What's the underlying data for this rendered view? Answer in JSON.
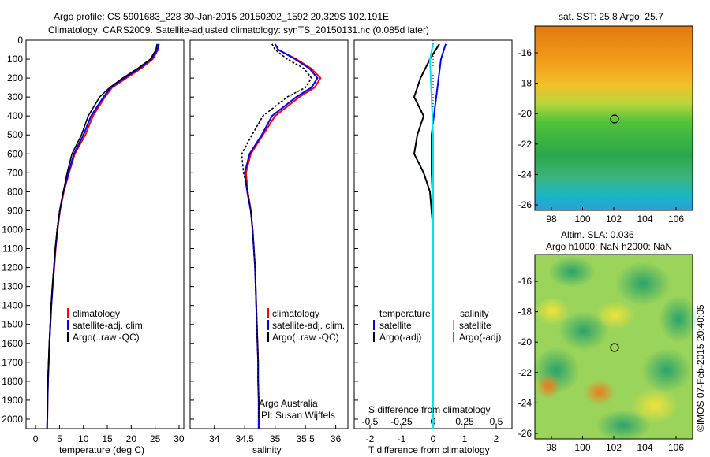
{
  "header": {
    "line1": "Argo profile: CS 5901683_228 30-Jan-2015 20150202_1592 20.329S 102.191E",
    "line2": "Climatology: CARS2009. Satellite-adjusted climatology: synTS_20150131.nc (0.085d later)"
  },
  "colors": {
    "climatology": "#ff0000",
    "satellite": "#0000ff",
    "argo": "#000000",
    "salinity_satellite": "#00e5ee",
    "salinity_argo": "#ff00ff"
  },
  "depth_axis": {
    "ylim": [
      0,
      2050
    ],
    "ticks": [
      0,
      100,
      200,
      300,
      400,
      500,
      600,
      700,
      800,
      900,
      1000,
      1100,
      1200,
      1300,
      1400,
      1500,
      1600,
      1700,
      1800,
      1900,
      2000
    ]
  },
  "chart_data": [
    {
      "type": "line",
      "xlabel": "temperature (deg C)",
      "xlim": [
        -2,
        31
      ],
      "xticks": [
        0,
        5,
        10,
        15,
        20,
        25,
        30
      ],
      "legend": [
        "climatology",
        "satellite-adj. clim.",
        "Argo(..raw -QC)"
      ],
      "series": [
        {
          "name": "climatology",
          "x": [
            25.8,
            25.6,
            24.5,
            22,
            19,
            16,
            14.5,
            12,
            10.4,
            8.2,
            7,
            5.9,
            5.1,
            4.6,
            4.2,
            3.9,
            3.6,
            3.3,
            3.1,
            2.9,
            2.75,
            2.6,
            2.5,
            2.45,
            2.4
          ],
          "depth": [
            20,
            50,
            100,
            150,
            200,
            250,
            300,
            400,
            500,
            600,
            700,
            800,
            900,
            1000,
            1100,
            1200,
            1300,
            1400,
            1500,
            1600,
            1700,
            1800,
            1900,
            2000,
            2050
          ]
        },
        {
          "name": "satellite-adj. clim.",
          "x": [
            25.7,
            25.5,
            24.2,
            21.6,
            18.6,
            15.7,
            14.2,
            11.6,
            10,
            8,
            6.9,
            5.8,
            5.05,
            4.55,
            4.15,
            3.85,
            3.55,
            3.3,
            3.1,
            2.9,
            2.75,
            2.6,
            2.5,
            2.45,
            2.4
          ],
          "depth": [
            20,
            50,
            100,
            150,
            200,
            250,
            300,
            400,
            500,
            600,
            700,
            800,
            900,
            1000,
            1100,
            1200,
            1300,
            1400,
            1500,
            1600,
            1700,
            1800,
            1900,
            2000,
            2050
          ]
        },
        {
          "name": "Argo(..raw -QC)",
          "x": [
            25.4,
            25.2,
            24,
            21.3,
            18.2,
            15.5,
            13.4,
            11,
            9.6,
            7.6,
            6.6,
            5.8,
            5.05,
            4.5,
            4.1,
            3.8,
            3.5,
            3.25,
            3.05,
            2.85,
            2.7,
            2.55,
            2.5,
            2.45
          ],
          "depth": [
            20,
            50,
            100,
            150,
            200,
            250,
            300,
            400,
            500,
            600,
            700,
            800,
            900,
            1000,
            1100,
            1200,
            1300,
            1400,
            1500,
            1600,
            1700,
            1800,
            1900,
            2000
          ]
        }
      ]
    },
    {
      "type": "line",
      "xlabel": "salinity",
      "xlim": [
        33.6,
        36.2
      ],
      "xticks": [
        34,
        34.5,
        35,
        35.5,
        36
      ],
      "legend": [
        "climatology",
        "satellite-adj. clim.",
        "Argo(..raw -QC)"
      ],
      "annotation": [
        "Argo Australia",
        "PI: Susan Wijffels"
      ],
      "series": [
        {
          "name": "climatology",
          "x": [
            35.0,
            35.05,
            35.35,
            35.6,
            35.75,
            35.65,
            35.4,
            35.0,
            34.8,
            34.6,
            34.52,
            34.55,
            34.6,
            34.63,
            34.65,
            34.67,
            34.68,
            34.69,
            34.7,
            34.71,
            34.72,
            34.72,
            34.73,
            34.73
          ],
          "depth": [
            20,
            50,
            100,
            150,
            200,
            250,
            300,
            400,
            500,
            600,
            700,
            800,
            900,
            1000,
            1100,
            1200,
            1300,
            1400,
            1500,
            1600,
            1700,
            1800,
            1900,
            2050
          ]
        },
        {
          "name": "satellite-adj. clim.",
          "x": [
            35.0,
            35.05,
            35.33,
            35.57,
            35.7,
            35.6,
            35.35,
            34.95,
            34.78,
            34.58,
            34.5,
            34.54,
            34.6,
            34.63,
            34.65,
            34.67,
            34.68,
            34.69,
            34.7,
            34.71,
            34.72,
            34.72,
            34.73,
            34.73
          ],
          "depth": [
            20,
            50,
            100,
            150,
            200,
            250,
            300,
            400,
            500,
            600,
            700,
            800,
            900,
            1000,
            1100,
            1200,
            1300,
            1400,
            1500,
            1600,
            1700,
            1800,
            1900,
            2050
          ]
        },
        {
          "name": "Argo(..raw -QC)",
          "x": [
            34.95,
            35.0,
            35.2,
            35.48,
            35.6,
            35.5,
            35.2,
            34.8,
            34.62,
            34.45,
            34.48,
            34.55,
            34.6,
            34.63,
            34.65,
            34.67,
            34.68,
            34.69,
            34.7,
            34.71,
            34.72,
            34.72,
            34.73,
            34.73
          ],
          "depth": [
            20,
            50,
            100,
            150,
            200,
            250,
            300,
            400,
            500,
            600,
            700,
            800,
            900,
            1000,
            1100,
            1200,
            1300,
            1400,
            1500,
            1600,
            1700,
            1800,
            1900,
            2000
          ]
        }
      ]
    },
    {
      "type": "line",
      "xlabel": "T difference from climatology",
      "xlabel_top": "S difference from climatology",
      "xlim": [
        -2.5,
        2.5
      ],
      "xticks": [
        -2,
        -1,
        0,
        1,
        2
      ],
      "xticks_salinity": [
        "-0.5",
        "-0.25",
        "0",
        "0.25",
        "0.5"
      ],
      "legend_temperature": [
        "temperature",
        "satellite",
        "Argo(-adj)"
      ],
      "legend_salinity": [
        "salinity",
        "satellite",
        "Argo(-adj)"
      ],
      "series": [
        {
          "name": "temperature satellite",
          "x": [
            0.4,
            0.25,
            0.1,
            -0.05,
            -0.05,
            0.0,
            0.0,
            0.0,
            0.0,
            0.0,
            0.0
          ],
          "depth": [
            20,
            100,
            300,
            500,
            700,
            900,
            1100,
            1400,
            1700,
            2000,
            2050
          ]
        },
        {
          "name": "temperature Argo(-adj)",
          "x": [
            0.2,
            -0.1,
            -0.4,
            -0.6,
            -0.3,
            -0.5,
            -0.6,
            -0.3,
            -0.1,
            0.0,
            0.0,
            0.0,
            0.0
          ],
          "depth": [
            20,
            100,
            200,
            300,
            400,
            500,
            600,
            700,
            800,
            1000,
            1400,
            1700,
            2000
          ]
        },
        {
          "name": "salinity satellite",
          "x": [
            0.0,
            -0.1,
            -0.05,
            0.0,
            0.0,
            0.0,
            0.0,
            0.0,
            0.0
          ],
          "depth": [
            20,
            100,
            300,
            500,
            700,
            900,
            1300,
            1700,
            2050
          ]
        },
        {
          "name": "salinity Argo(-adj)",
          "x": [
            0.0,
            0.0
          ],
          "depth": [
            1500,
            1500
          ]
        }
      ]
    }
  ],
  "sst_map": {
    "title": "sat. SST: 25.8  Argo: 25.7",
    "xticks": [
      "98",
      "100",
      "102",
      "104",
      "106"
    ],
    "yticks": [
      "-16",
      "-18",
      "-20",
      "-22",
      "-24",
      "-26"
    ]
  },
  "sla_map": {
    "title1": "Altim. SLA: 0.036",
    "title2": "Argo h1000: NaN h2000: NaN",
    "xticks": [
      "98",
      "100",
      "102",
      "104",
      "106"
    ],
    "yticks": [
      "-16",
      "-18",
      "-20",
      "-22",
      "-24",
      "-26"
    ]
  },
  "credit": "©IMOS 07-Feb-2015 20:40:05"
}
